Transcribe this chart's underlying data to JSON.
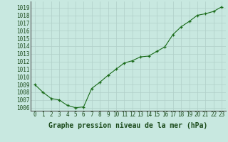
{
  "x": [
    0,
    1,
    2,
    3,
    4,
    5,
    6,
    7,
    8,
    9,
    10,
    11,
    12,
    13,
    14,
    15,
    16,
    17,
    18,
    19,
    20,
    21,
    22,
    23
  ],
  "y": [
    1009,
    1008,
    1007.2,
    1007,
    1006.3,
    1006.0,
    1006.1,
    1008.5,
    1009.3,
    1010.2,
    1011.0,
    1011.8,
    1012.1,
    1012.6,
    1012.7,
    1013.3,
    1013.9,
    1015.5,
    1016.5,
    1017.2,
    1018.0,
    1018.2,
    1018.5,
    1019.1
  ],
  "line_color": "#1a6b1a",
  "marker_color": "#1a6b1a",
  "bg_color": "#c8e8e0",
  "grid_color": "#b0cfc8",
  "axis_color": "#555555",
  "ylabel_min": 1006,
  "ylabel_max": 1019,
  "xlabel_label": "Graphe pression niveau de la mer (hPa)",
  "xlim": [
    -0.5,
    23.5
  ],
  "ylim": [
    1005.6,
    1019.8
  ],
  "ytick_min": 1006,
  "ytick_max": 1019,
  "xtick_labels": [
    "0",
    "1",
    "2",
    "3",
    "4",
    "5",
    "6",
    "7",
    "8",
    "9",
    "10",
    "11",
    "12",
    "13",
    "14",
    "15",
    "16",
    "17",
    "18",
    "19",
    "20",
    "21",
    "22",
    "23"
  ],
  "label_fontsize": 5.5,
  "xlabel_fontsize": 7.0
}
